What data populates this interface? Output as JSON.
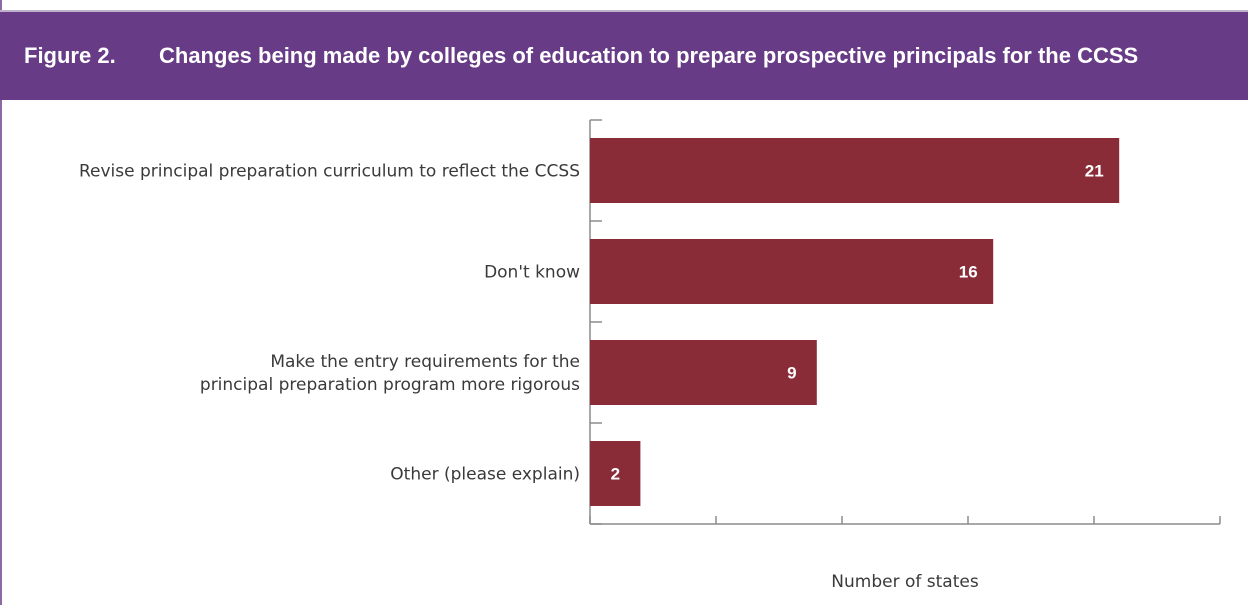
{
  "figure": {
    "label": "Figure 2.",
    "title": "Changes being made by colleges of education to prepare prospective principals for the CCSS"
  },
  "chart_data": {
    "type": "bar",
    "orientation": "horizontal",
    "categories": [
      [
        "Revise principal preparation curriculum to reflect the CCSS"
      ],
      [
        "Don't know"
      ],
      [
        "Make the entry requirements for the",
        "principal preparation program more rigorous"
      ],
      [
        "Other (please explain)"
      ]
    ],
    "values": [
      21,
      16,
      9,
      2
    ],
    "xlabel": "Number of states",
    "xlim": [
      0,
      25
    ],
    "grid": false,
    "bar_color": "#8a2b38"
  }
}
